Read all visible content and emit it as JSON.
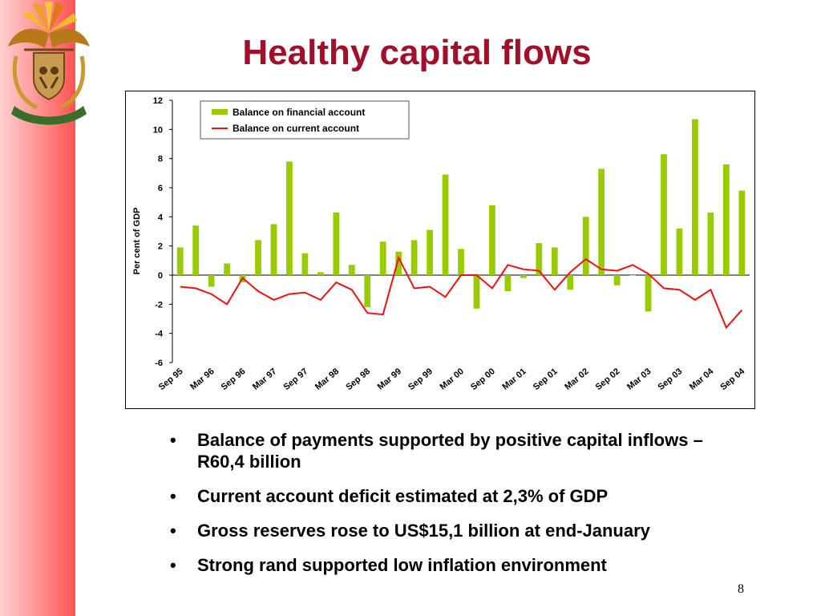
{
  "slide": {
    "title": "Healthy capital flows",
    "page_number": "8",
    "logo_motto": "!KE E: /XARRA //KE"
  },
  "bullets": [
    "Balance of payments supported by positive capital inflows – R60,4 billion",
    "Current account deficit estimated  at 2,3% of GDP",
    "Gross reserves rose to US$15,1 billion at end-January",
    "Strong rand supported low inflation environment"
  ],
  "colors": {
    "title": "#a0102a",
    "bar_series": "#99cc00",
    "line_series": "#ee1111",
    "side_bar": "#ff5252"
  },
  "chart_data": {
    "type": "bar",
    "title": "",
    "xlabel": "",
    "ylabel": "Per cent of GDP",
    "ylim": [
      -6,
      12
    ],
    "yticks": [
      12,
      10,
      8,
      6,
      4,
      2,
      0,
      -2,
      -4,
      -6
    ],
    "grid": false,
    "legend_position": "top-left",
    "quarter_ticks": [
      "Sep 95",
      "Mar 96",
      "Sep 96",
      "Mar 97",
      "Sep 97",
      "Mar 98",
      "Sep 98",
      "Mar 99",
      "Sep 99",
      "Mar 00",
      "Sep 00",
      "Mar 01",
      "Sep 01",
      "Mar 02",
      "Sep 02",
      "Mar 03",
      "Sep 03",
      "Mar 04",
      "Sep 04"
    ],
    "series": [
      {
        "name": "Balance on financial account",
        "type": "bar",
        "values": [
          1.9,
          3.4,
          -0.8,
          0.8,
          -0.5,
          2.4,
          3.5,
          7.8,
          1.5,
          0.2,
          4.3,
          0.7,
          -2.2,
          2.3,
          1.6,
          2.4,
          3.1,
          6.9,
          1.8,
          -2.3,
          4.8,
          -1.1,
          -0.2,
          2.2,
          1.9,
          -1.0,
          4.0,
          7.3,
          -0.7,
          0.0,
          -2.5,
          8.3,
          3.2,
          10.7,
          4.3,
          7.6,
          5.8
        ]
      },
      {
        "name": "Balance on current account",
        "type": "line",
        "values": [
          -0.8,
          -0.9,
          -1.3,
          -2.0,
          -0.2,
          -1.1,
          -1.7,
          -1.3,
          -1.2,
          -1.7,
          -0.5,
          -1.0,
          -2.6,
          -2.7,
          1.2,
          -0.9,
          -0.8,
          -1.5,
          0.0,
          0.0,
          -0.9,
          0.7,
          0.4,
          0.3,
          -1.0,
          0.2,
          1.1,
          0.4,
          0.3,
          0.7,
          0.1,
          -0.9,
          -1.0,
          -1.7,
          -1.0,
          -3.6,
          -2.4
        ]
      }
    ]
  }
}
